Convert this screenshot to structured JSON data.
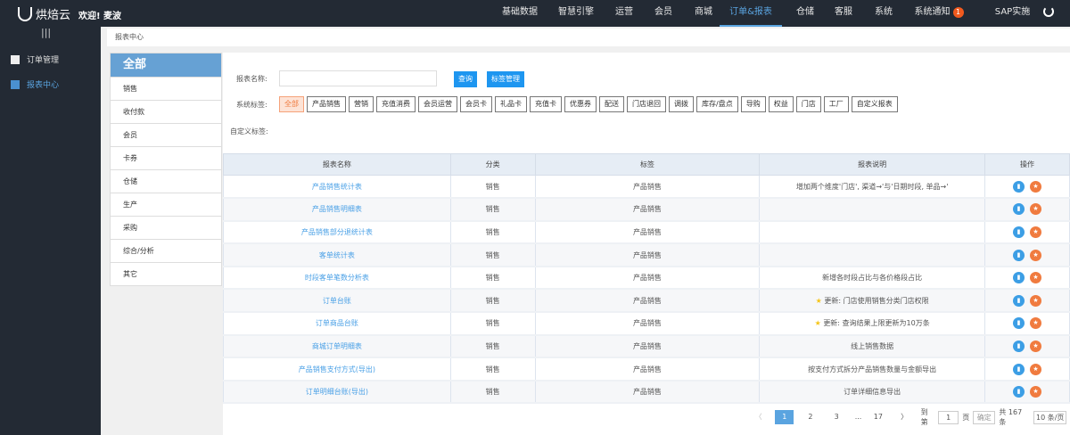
{
  "header": {
    "brand": "烘焙云",
    "welcome": "欢迎!",
    "user": "麦波",
    "nav": [
      {
        "label": "基础数据"
      },
      {
        "label": "智慧引擎"
      },
      {
        "label": "运营"
      },
      {
        "label": "会员"
      },
      {
        "label": "商城"
      },
      {
        "label": "订单&报表",
        "active": true
      },
      {
        "label": "仓储"
      },
      {
        "label": "客服"
      },
      {
        "label": "系统"
      },
      {
        "label": "系统通知",
        "badge": "1"
      },
      {
        "label": "SAP实施"
      }
    ],
    "menu_icon": "|||",
    "power_icon": "power-icon"
  },
  "sidebar": {
    "items": [
      {
        "label": "订单管理",
        "icon": "document-icon"
      },
      {
        "label": "报表中心",
        "icon": "chart-icon",
        "active": true
      }
    ]
  },
  "breadcrumb": "报表中心",
  "categories": {
    "header": "全部",
    "items": [
      "销售",
      "收付款",
      "会员",
      "卡券",
      "仓储",
      "生产",
      "采购",
      "综合/分析",
      "其它"
    ]
  },
  "form": {
    "name_label": "报表名称:",
    "name_value": "",
    "query_button": "查询",
    "tag_manage_button": "标签管理",
    "system_tags_label": "系统标签:",
    "custom_tags_label": "自定义标签:",
    "tags": [
      "全部",
      "产品销售",
      "营销",
      "充值消费",
      "会员运营",
      "会员卡",
      "礼品卡",
      "充值卡",
      "优惠券",
      "配送",
      "门店退回",
      "调拨",
      "库存/盘点",
      "导购",
      "权益",
      "门店",
      "工厂",
      "自定义报表"
    ],
    "active_tag": "全部"
  },
  "table": {
    "columns": [
      "报表名称",
      "分类",
      "标签",
      "报表说明",
      "操作"
    ],
    "rows": [
      {
        "name": "产品销售统计表",
        "category": "销售",
        "tag": "产品销售",
        "desc": "增加两个维度'门店', 渠道→'与'日期时段, 单品→'",
        "star": false
      },
      {
        "name": "产品销售明细表",
        "category": "销售",
        "tag": "产品销售",
        "desc": "",
        "star": false
      },
      {
        "name": "产品销售部分退统计表",
        "category": "销售",
        "tag": "产品销售",
        "desc": "",
        "star": false
      },
      {
        "name": "客单统计表",
        "category": "销售",
        "tag": "产品销售",
        "desc": "",
        "star": false
      },
      {
        "name": "时段客单笔数分析表",
        "category": "销售",
        "tag": "产品销售",
        "desc": "新增各时段占比与各价格段占比",
        "star": false
      },
      {
        "name": "订单台账",
        "category": "销售",
        "tag": "产品销售",
        "desc": "更新: 门店使用销售分类门店权限",
        "star": true
      },
      {
        "name": "订单商品台账",
        "category": "销售",
        "tag": "产品销售",
        "desc": "更新: 查询结果上限更新为10万条",
        "star": true
      },
      {
        "name": "商城订单明细表",
        "category": "销售",
        "tag": "产品销售",
        "desc": "线上销售数据",
        "star": false
      },
      {
        "name": "产品销售支付方式(导出)",
        "category": "销售",
        "tag": "产品销售",
        "desc": "按支付方式拆分产品销售数量与金额导出",
        "star": false
      },
      {
        "name": "订单明细台账(导出)",
        "category": "销售",
        "tag": "产品销售",
        "desc": "订单详细信息导出",
        "star": false
      }
    ]
  },
  "pagination": {
    "prev": "〈",
    "pages": [
      "1",
      "2",
      "3",
      "...",
      "17"
    ],
    "current": "1",
    "next": "〉",
    "goto_label": "到第",
    "goto_value": "1",
    "page_unit": "页",
    "confirm": "确定",
    "total": "共 167 条",
    "page_size": "10 条/页"
  },
  "colors": {
    "nav_bg": "#232a34",
    "accent": "#5aa4e0",
    "button": "#1e96f0",
    "active_tag": "#f07b3f",
    "badge": "#f25a1e"
  }
}
